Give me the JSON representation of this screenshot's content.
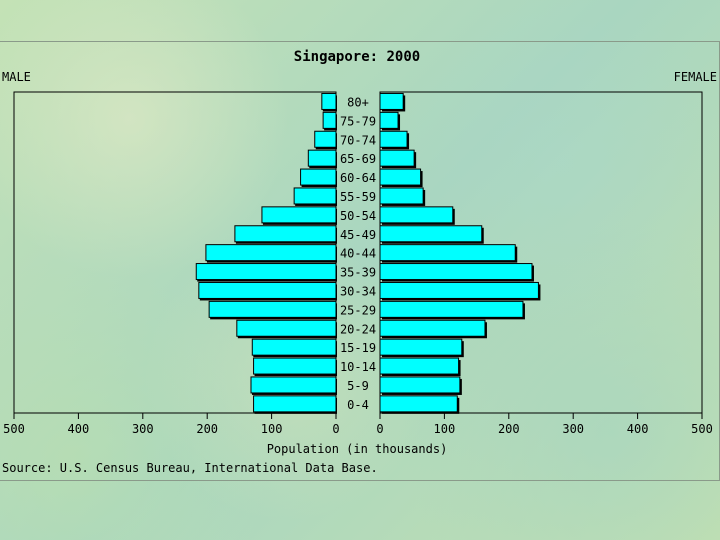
{
  "chart_data": {
    "type": "bar",
    "title": "Singapore: 2000",
    "left_label": "MALE",
    "right_label": "FEMALE",
    "xlabel": "Population (in thousands)",
    "source": "Source: U.S. Census Bureau, International Data Base.",
    "xlim": [
      0,
      500
    ],
    "x_ticks": [
      "500",
      "400",
      "300",
      "200",
      "100",
      "0",
      "0",
      "100",
      "200",
      "300",
      "400",
      "500"
    ],
    "bar_color": "#00ffff",
    "categories": [
      "80+",
      "75-79",
      "70-74",
      "65-69",
      "60-64",
      "55-59",
      "50-54",
      "45-49",
      "40-44",
      "35-39",
      "30-34",
      "25-29",
      "20-24",
      "15-19",
      "10-14",
      "5-9",
      "0-4"
    ],
    "series": [
      {
        "name": "MALE",
        "values": [
          22,
          20,
          33,
          43,
          55,
          65,
          115,
          157,
          202,
          217,
          213,
          197,
          154,
          130,
          128,
          132,
          128
        ]
      },
      {
        "name": "FEMALE",
        "values": [
          36,
          28,
          42,
          53,
          63,
          67,
          113,
          158,
          210,
          236,
          246,
          222,
          163,
          127,
          122,
          124,
          120
        ]
      }
    ]
  }
}
